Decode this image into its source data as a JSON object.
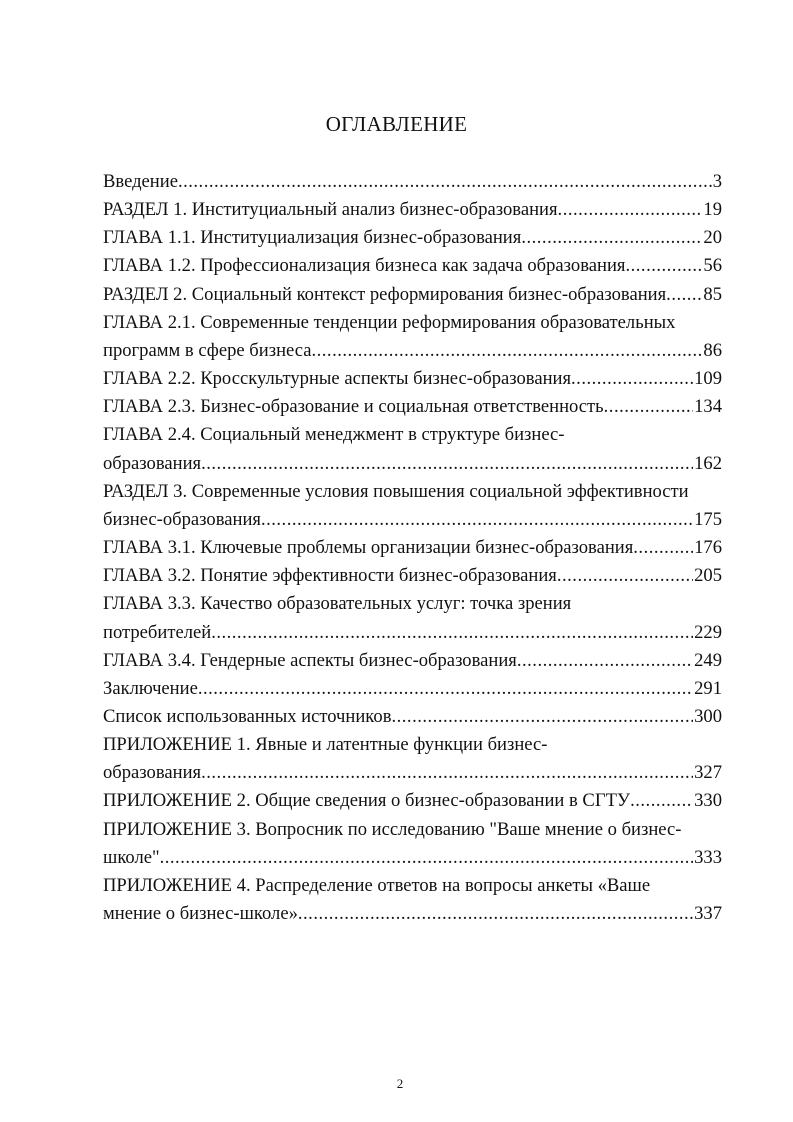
{
  "title": "ОГЛАВЛЕНИЕ",
  "entries": [
    {
      "lines": [
        "Введение"
      ],
      "page": "3"
    },
    {
      "lines": [
        "РАЗДЕЛ 1.  Институциальный анализ бизнес-образования"
      ],
      "page": "19"
    },
    {
      "lines": [
        "ГЛАВА 1.1. Институциализация бизнес-образования"
      ],
      "page": "20"
    },
    {
      "lines": [
        "ГЛАВА 1.2. Профессионализация бизнеса как задача образования"
      ],
      "page": "56"
    },
    {
      "lines": [
        "РАЗДЕЛ 2. Социальный контекст реформирования бизнес-образования"
      ],
      "page": "85"
    },
    {
      "lines": [
        "ГЛАВА 2.1. Современные тенденции реформирования образовательных",
        "программ в сфере бизнеса"
      ],
      "page": "86"
    },
    {
      "lines": [
        "ГЛАВА 2.2. Кросскультурные аспекты бизнес-образования"
      ],
      "page": "109"
    },
    {
      "lines": [
        "ГЛАВА 2.3. Бизнес-образование и социальная ответственность"
      ],
      "page": "134"
    },
    {
      "lines": [
        "ГЛАВА 2.4. Социальный менеджмент в структуре бизнес-",
        "образования"
      ],
      "page": "162"
    },
    {
      "lines": [
        "РАЗДЕЛ 3. Современные условия повышения социальной эффективности",
        "бизнес-образования"
      ],
      "page": "175"
    },
    {
      "lines": [
        "ГЛАВА 3.1. Ключевые проблемы организации бизнес-образования"
      ],
      "page": "176"
    },
    {
      "lines": [
        "ГЛАВА 3.2. Понятие эффективности бизнес-образования"
      ],
      "page": "205"
    },
    {
      "lines": [
        "ГЛАВА 3.3. Качество образовательных услуг: точка зрения",
        "потребителей"
      ],
      "page": "229"
    },
    {
      "lines": [
        "ГЛАВА 3.4. Гендерные аспекты бизнес-образования"
      ],
      "page": "249"
    },
    {
      "lines": [
        "Заключение"
      ],
      "page": "291"
    },
    {
      "lines": [
        "Список использованных источников"
      ],
      "page": "300"
    },
    {
      "lines": [
        "ПРИЛОЖЕНИЕ 1. Явные и латентные функции бизнес-",
        "образования"
      ],
      "page": "327"
    },
    {
      "lines": [
        "ПРИЛОЖЕНИЕ 2. Общие сведения о бизнес-образовании в СГТУ"
      ],
      "page": "330"
    },
    {
      "lines": [
        "ПРИЛОЖЕНИЕ 3.  Вопросник по исследованию \"Ваше мнение о бизнес-",
        "школе\""
      ],
      "page": "333"
    },
    {
      "lines": [
        "ПРИЛОЖЕНИЕ 4. Распределение ответов на вопросы анкеты «Ваше",
        "мнение о бизнес-школе»"
      ],
      "page": "337"
    }
  ],
  "page_number": "2"
}
